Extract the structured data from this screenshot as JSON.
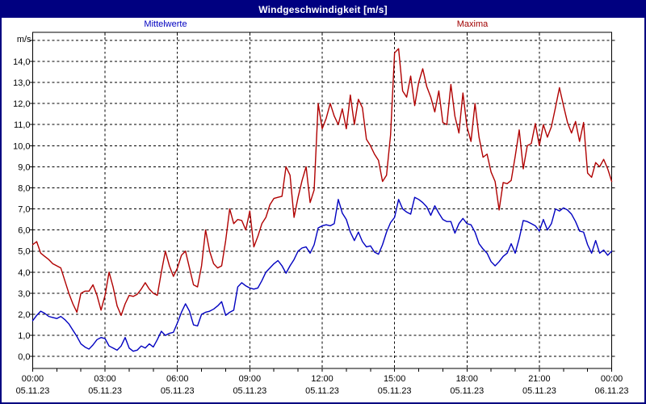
{
  "window": {
    "title": "Windgeschwindigkeit [m/s]"
  },
  "colors": {
    "titlebar_bg": "#000080",
    "titlebar_text": "#ffffff",
    "window_border": "#000080",
    "plot_bg": "#ffffff",
    "grid": "#000000",
    "mean_series": "#0000c0",
    "max_series": "#b00000",
    "legend_mean_text": "#0000c0",
    "legend_max_text": "#a00000"
  },
  "chart_data": {
    "type": "line",
    "title": "Windgeschwindigkeit [m/s]",
    "y_unit_label": "m/s",
    "ylim": [
      0,
      15
    ],
    "ytick_step": 1.0,
    "ytick_labels": [
      "0,0",
      "1,0",
      "2,0",
      "3,0",
      "4,0",
      "5,0",
      "6,0",
      "7,0",
      "8,0",
      "9,0",
      "10,0",
      "11,0",
      "12,0",
      "13,0",
      "14,0"
    ],
    "grid": "dashed, every 1.0 m/s horizontal and every 3 h vertical",
    "legend_position": "top, outside plot",
    "x_span_hours": 24,
    "sample_interval_minutes": 10,
    "xticks": [
      {
        "time": "00:00",
        "date": "05.11.23"
      },
      {
        "time": "03:00",
        "date": "05.11.23"
      },
      {
        "time": "06:00",
        "date": "05.11.23"
      },
      {
        "time": "09:00",
        "date": "05.11.23"
      },
      {
        "time": "12:00",
        "date": "05.11.23"
      },
      {
        "time": "15:00",
        "date": "05.11.23"
      },
      {
        "time": "18:00",
        "date": "05.11.23"
      },
      {
        "time": "21:00",
        "date": "05.11.23"
      },
      {
        "time": "00:00",
        "date": "06.11.23"
      }
    ],
    "legend": [
      {
        "name": "Mittelwerte",
        "color": "#0000c0"
      },
      {
        "name": "Maxima",
        "color": "#b00000"
      }
    ],
    "series": [
      {
        "name": "Mittelwerte",
        "color": "#0000c0",
        "values": [
          1.7,
          1.95,
          2.15,
          2.05,
          1.9,
          1.85,
          1.8,
          1.9,
          1.75,
          1.55,
          1.25,
          0.95,
          0.6,
          0.45,
          0.35,
          0.55,
          0.8,
          0.9,
          0.85,
          0.5,
          0.4,
          0.3,
          0.5,
          0.9,
          0.4,
          0.25,
          0.3,
          0.5,
          0.4,
          0.6,
          0.45,
          0.8,
          1.2,
          1.0,
          1.1,
          1.15,
          1.6,
          2.1,
          2.5,
          2.15,
          1.5,
          1.45,
          2.0,
          2.1,
          2.15,
          2.25,
          2.4,
          2.6,
          1.95,
          2.1,
          2.2,
          3.3,
          3.5,
          3.35,
          3.25,
          3.2,
          3.25,
          3.6,
          4.0,
          4.2,
          4.4,
          4.55,
          4.3,
          3.95,
          4.3,
          4.6,
          5.0,
          5.15,
          5.2,
          4.9,
          5.3,
          6.1,
          6.2,
          6.25,
          6.2,
          6.3,
          7.45,
          6.8,
          6.5,
          5.9,
          5.5,
          5.9,
          5.45,
          5.2,
          5.25,
          4.95,
          4.85,
          5.3,
          5.9,
          6.35,
          6.6,
          7.45,
          7.0,
          6.85,
          6.75,
          7.55,
          7.45,
          7.3,
          7.1,
          6.7,
          7.15,
          6.8,
          6.5,
          6.4,
          6.4,
          5.85,
          6.3,
          6.55,
          6.3,
          6.25,
          5.9,
          5.35,
          5.1,
          4.9,
          4.5,
          4.3,
          4.5,
          4.75,
          4.9,
          5.35,
          4.9,
          5.6,
          6.45,
          6.4,
          6.3,
          6.2,
          5.95,
          6.5,
          6.0,
          6.3,
          7.0,
          6.9,
          7.05,
          6.95,
          6.75,
          6.4,
          5.95,
          5.9,
          5.3,
          4.9,
          5.5,
          4.9,
          5.05,
          4.8,
          5.0
        ]
      },
      {
        "name": "Maxima",
        "color": "#b00000",
        "values": [
          5.3,
          5.45,
          4.9,
          4.75,
          4.6,
          4.4,
          4.3,
          4.2,
          3.6,
          3.0,
          2.5,
          2.1,
          3.0,
          3.1,
          3.1,
          3.4,
          2.9,
          2.2,
          2.9,
          4.0,
          3.3,
          2.4,
          1.95,
          2.5,
          2.9,
          2.85,
          2.95,
          3.2,
          3.5,
          3.2,
          3.0,
          2.9,
          4.0,
          5.0,
          4.3,
          3.8,
          4.2,
          4.8,
          5.0,
          4.2,
          3.4,
          3.3,
          4.3,
          6.0,
          5.0,
          4.4,
          4.2,
          4.3,
          5.5,
          7.0,
          6.3,
          6.5,
          6.45,
          6.0,
          6.9,
          5.2,
          5.7,
          6.3,
          6.6,
          7.2,
          7.5,
          7.55,
          7.6,
          9.0,
          8.6,
          6.6,
          7.55,
          8.35,
          9.0,
          7.3,
          7.9,
          12.0,
          10.8,
          11.3,
          12.0,
          11.4,
          11.0,
          11.75,
          10.8,
          12.4,
          11.0,
          12.2,
          11.8,
          10.3,
          10.0,
          9.6,
          9.3,
          8.3,
          8.6,
          10.5,
          14.4,
          14.6,
          12.6,
          12.3,
          13.3,
          11.9,
          13.0,
          13.65,
          12.8,
          12.3,
          11.6,
          12.6,
          11.1,
          11.0,
          12.9,
          11.4,
          10.6,
          12.5,
          10.9,
          10.2,
          12.0,
          10.4,
          9.45,
          9.6,
          8.75,
          8.3,
          6.95,
          8.25,
          8.2,
          8.35,
          9.5,
          10.75,
          8.9,
          10.0,
          10.1,
          11.05,
          10.0,
          11.0,
          10.4,
          10.9,
          11.8,
          12.75,
          11.9,
          11.1,
          10.6,
          11.15,
          10.2,
          11.1,
          8.7,
          8.5,
          9.2,
          9.0,
          9.35,
          8.9,
          8.3
        ]
      }
    ]
  }
}
